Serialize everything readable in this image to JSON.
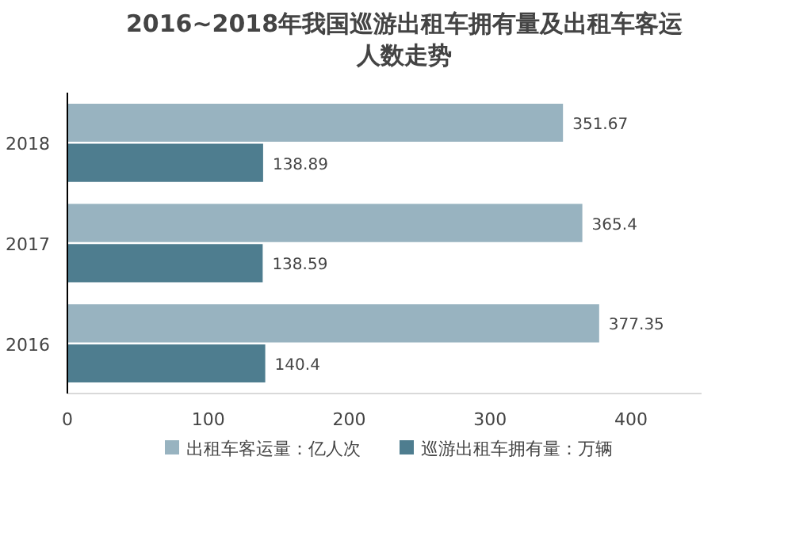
{
  "chart_data": {
    "type": "bar",
    "orientation": "horizontal",
    "title": "2016~2018年我国巡游出租车拥有量及出租车客运人数走势",
    "categories": [
      "2018",
      "2017",
      "2016"
    ],
    "series": [
      {
        "name": "出租车客运量：亿人次",
        "color": "#98b3c0",
        "values": [
          351.67,
          365.4,
          377.35
        ]
      },
      {
        "name": "巡游出租车拥有量：万辆",
        "color": "#4e7d8f",
        "values": [
          138.89,
          138.59,
          140.4
        ]
      }
    ],
    "xlim": [
      0,
      450
    ],
    "xticks": [
      0,
      100,
      200,
      300,
      400
    ],
    "data_labels": true,
    "legend": "bottom",
    "grid": false
  }
}
